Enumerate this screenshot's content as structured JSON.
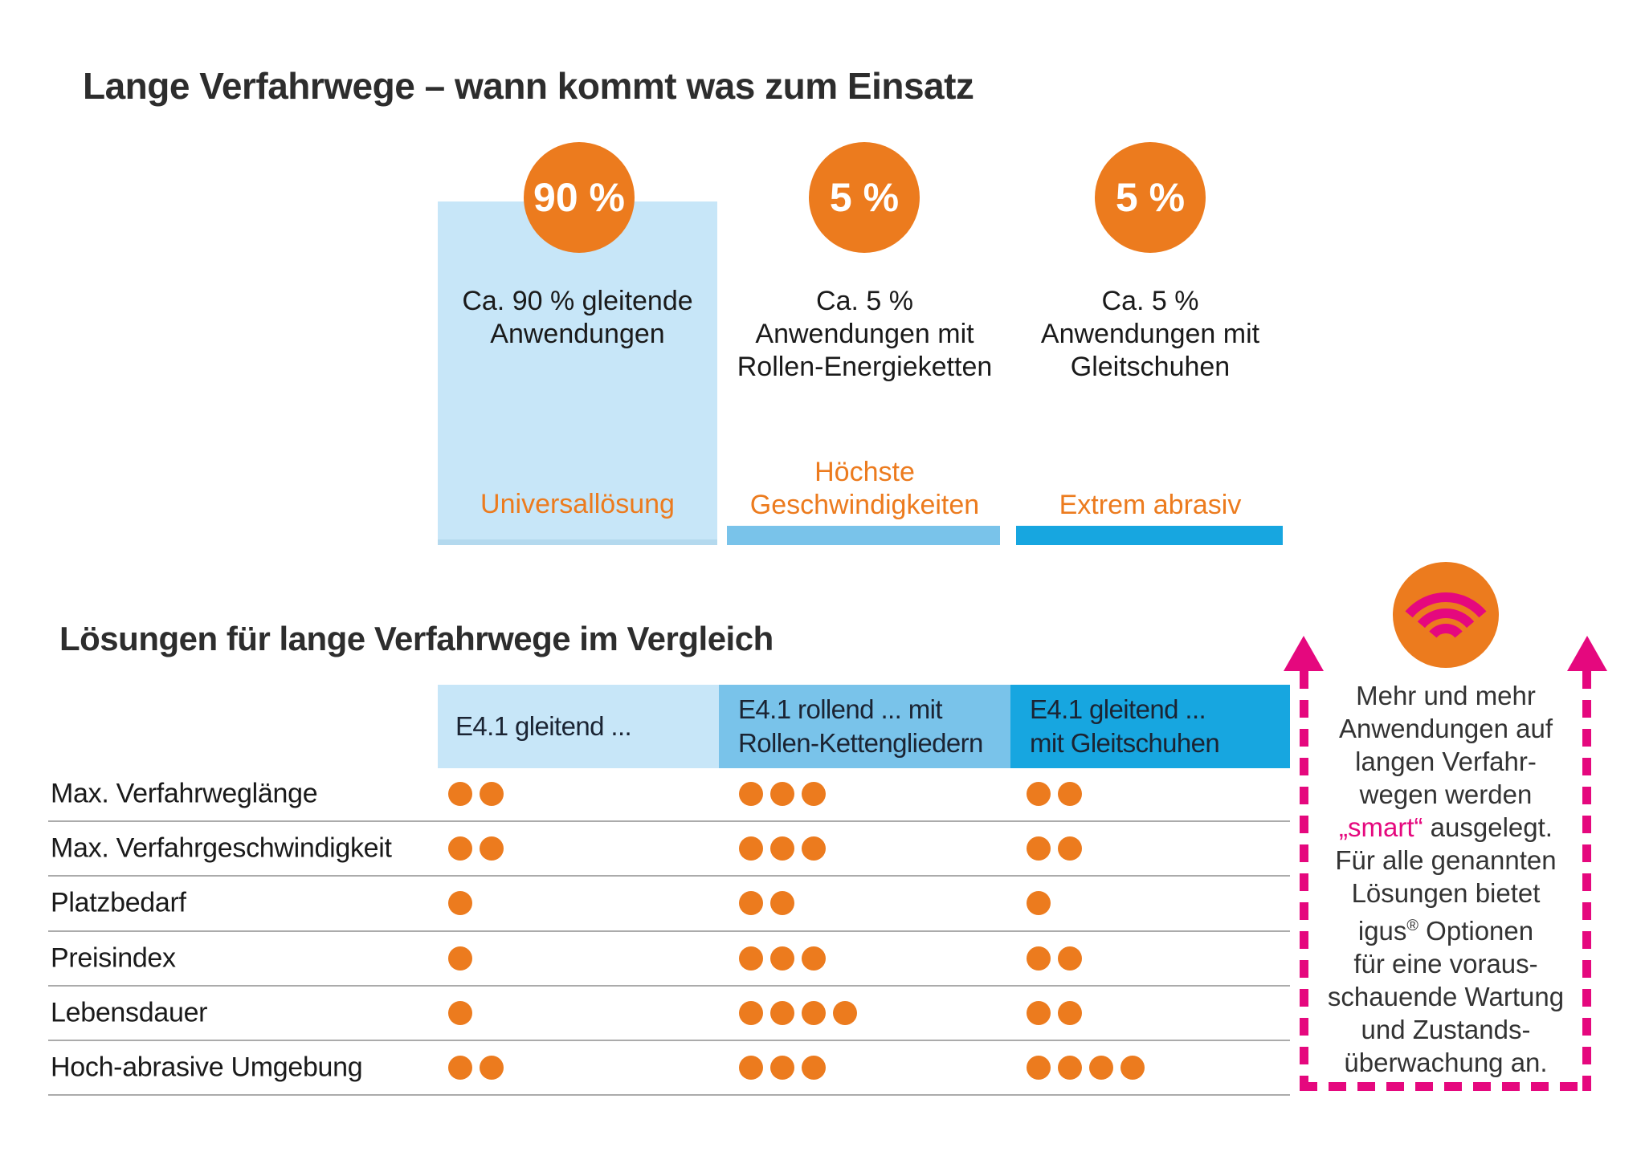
{
  "colors": {
    "orange": "#ec7b1e",
    "light_blue": "#c7e6f8",
    "medium_blue": "#79c3ea",
    "dark_blue": "#17a6e0",
    "magenta": "#e5087e",
    "text_dark": "#1a1a1a",
    "separator_gray": "#ababab"
  },
  "top": {
    "title": "Lange Verfahrwege – wann kommt was zum Einsatz",
    "columns": [
      {
        "percent": "90 %",
        "caption": "Ca. 90 % gleitende\nAnwendungen",
        "tag": "Universallösung"
      },
      {
        "percent": "5 %",
        "caption": "Ca. 5 %\nAnwendungen mit\nRollen-Energieketten",
        "tag": "Höchste\nGeschwindigkeiten"
      },
      {
        "percent": "5 %",
        "caption": "Ca. 5 %\nAnwendungen mit\nGleitschuhen",
        "tag": "Extrem abrasiv"
      }
    ]
  },
  "comparison": {
    "title": "Lösungen für lange Verfahrwege im Vergleich",
    "columns": [
      {
        "header": "E4.1 gleitend ..."
      },
      {
        "header": "E4.1 rollend ... mit\nRollen-Kettengliedern"
      },
      {
        "header": "E4.1 gleitend ...\nmit Gleitschuhen"
      }
    ],
    "rows": [
      {
        "label": "Max. Verfahrweglänge",
        "ratings": [
          2,
          3,
          2
        ]
      },
      {
        "label": "Max. Verfahrgeschwindigkeit",
        "ratings": [
          2,
          3,
          2
        ]
      },
      {
        "label": "Platzbedarf",
        "ratings": [
          1,
          2,
          1
        ]
      },
      {
        "label": "Preisindex",
        "ratings": [
          1,
          3,
          2
        ]
      },
      {
        "label": "Lebensdauer",
        "ratings": [
          1,
          4,
          2
        ]
      },
      {
        "label": "Hoch-abrasive Umgebung",
        "ratings": [
          2,
          3,
          4
        ]
      }
    ]
  },
  "note": {
    "lines": "Mehr und mehr\nAnwendungen auf\nlangen Verfahr-\nwegen werden\n„smart“ ausgelegt.\nFür alle genannten\nLösungen bietet\nigus® Optionen\nfür eine voraus-\nschauende Wartung\nund Zustands-\nüberwachung an.",
    "highlight": "„smart“"
  },
  "chart_data": [
    {
      "type": "bar",
      "title": "Lange Verfahrwege – wann kommt was zum Einsatz",
      "categories": [
        "Ca. 90 % gleitende Anwendungen",
        "Ca. 5 % Anwendungen mit Rollen-Energieketten",
        "Ca. 5 % Anwendungen mit Gleitschuhen"
      ],
      "values": [
        90,
        5,
        5
      ],
      "unit": "%",
      "annotations": [
        "Universallösung",
        "Höchste Geschwindigkeiten",
        "Extrem abrasiv"
      ],
      "ylim": [
        0,
        100
      ]
    },
    {
      "type": "table",
      "title": "Lösungen für lange Verfahrwege im Vergleich",
      "columns": [
        "E4.1 gleitend ...",
        "E4.1 rollend ... mit Rollen-Kettengliedern",
        "E4.1 gleitend ... mit Gleitschuhen"
      ],
      "row_labels": [
        "Max. Verfahrweglänge",
        "Max. Verfahrgeschwindigkeit",
        "Platzbedarf",
        "Preisindex",
        "Lebensdauer",
        "Hoch-abrasive Umgebung"
      ],
      "values": [
        [
          2,
          3,
          2
        ],
        [
          2,
          3,
          2
        ],
        [
          1,
          2,
          1
        ],
        [
          1,
          3,
          2
        ],
        [
          1,
          4,
          2
        ],
        [
          2,
          3,
          4
        ]
      ],
      "value_encoding": "orange dot count (1–4)"
    }
  ]
}
